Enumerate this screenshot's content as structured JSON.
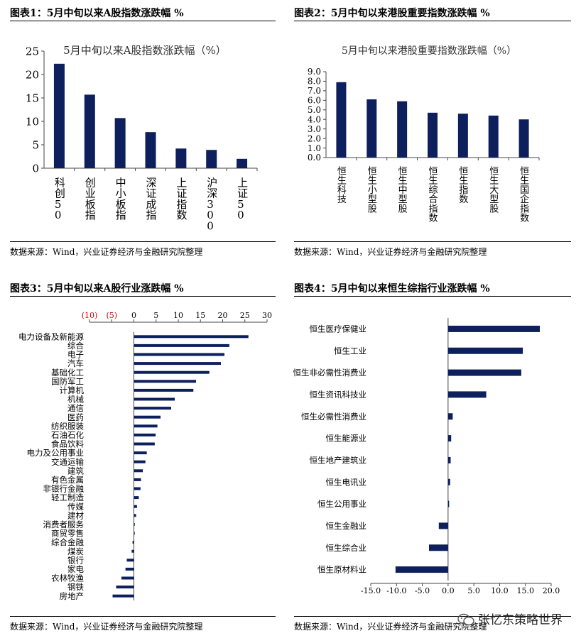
{
  "panels": [
    {
      "title": "图表1：5月中旬以来A股指数涨跌幅 %",
      "source": "数据来源：Wind，兴业证券经济与金融研究院整理",
      "chart_data": {
        "type": "bar",
        "orientation": "vertical",
        "title": "5月中旬以来A股指数涨跌幅（%）",
        "categories": [
          "科创50",
          "创业板指",
          "中小板指",
          "深证成指",
          "上证指数",
          "沪深300",
          "上证50"
        ],
        "values": [
          22.3,
          15.7,
          10.7,
          7.7,
          4.2,
          3.9,
          2.0
        ],
        "ylim": [
          0,
          25
        ],
        "yticks": [
          "0",
          "5",
          "10",
          "15",
          "20",
          "25"
        ],
        "color": "#0d1f5c"
      }
    },
    {
      "title": "图表2：5月中旬以来港股重要指数涨跌幅 %",
      "source": "数据来源：Wind，兴业证券经济与金融研究院整理",
      "chart_data": {
        "type": "bar",
        "orientation": "vertical",
        "title": "5月中旬以来港股重要指数涨跌幅（%）",
        "categories": [
          "恒生科技",
          "恒生小型股",
          "恒生中型股",
          "恒生综合指数",
          "恒生指数",
          "恒生大型股",
          "恒生国企指数"
        ],
        "values": [
          7.9,
          6.1,
          5.9,
          4.7,
          4.6,
          4.4,
          4.0
        ],
        "ylim": [
          0,
          9
        ],
        "yticks": [
          "0.0",
          "1.0",
          "2.0",
          "3.0",
          "4.0",
          "5.0",
          "6.0",
          "7.0",
          "8.0",
          "9.0"
        ],
        "color": "#0d1f5c"
      }
    },
    {
      "title": "图表3：5月中旬以来A股行业涨跌幅 %",
      "source": "数据来源：Wind，兴业证券经济与金融研究院整理",
      "chart_data": {
        "type": "bar",
        "orientation": "horizontal",
        "categories": [
          "电力设备及新能源",
          "综合",
          "电子",
          "汽车",
          "基础化工",
          "国防军工",
          "计算机",
          "机械",
          "通信",
          "医药",
          "纺织服装",
          "石油石化",
          "食品饮料",
          "电力及公用事业",
          "交通运输",
          "建筑",
          "有色金属",
          "非银行金融",
          "轻工制造",
          "传媒",
          "建材",
          "消费者服务",
          "商贸零售",
          "综合金融",
          "煤炭",
          "银行",
          "家电",
          "农林牧渔",
          "钢铁",
          "房地产"
        ],
        "values": [
          25.8,
          21.5,
          20.4,
          19.6,
          17.0,
          14.0,
          13.4,
          9.2,
          8.4,
          6.0,
          5.3,
          4.9,
          4.7,
          2.9,
          2.6,
          2.0,
          1.6,
          1.5,
          1.1,
          0.7,
          0.5,
          0.2,
          0.1,
          -0.3,
          -0.5,
          -1.6,
          -1.9,
          -2.8,
          -4.0,
          -4.8
        ],
        "xlim": [
          -10,
          30
        ],
        "xticks": [
          {
            "value": -10,
            "label": "(10)",
            "negative": true
          },
          {
            "value": -5,
            "label": "(5)",
            "negative": true
          },
          {
            "value": 0,
            "label": "0",
            "negative": false
          },
          {
            "value": 5,
            "label": "5",
            "negative": false
          },
          {
            "value": 10,
            "label": "10",
            "negative": false
          },
          {
            "value": 15,
            "label": "15",
            "negative": false
          },
          {
            "value": 20,
            "label": "20",
            "negative": false
          },
          {
            "value": 25,
            "label": "25",
            "negative": false
          },
          {
            "value": 30,
            "label": "30",
            "negative": false
          }
        ],
        "color": "#0d1f5c",
        "negative_tick_color": "#cc0000"
      }
    },
    {
      "title": "图表4：5月中旬以来恒生综指行业涨跌幅 %",
      "source": "数据来源：Wind，兴业证券经济与金融研究院整理",
      "chart_data": {
        "type": "bar",
        "orientation": "horizontal",
        "categories": [
          "恒生医疗保健业",
          "恒生工业",
          "恒生非必需性消费业",
          "恒生资讯科技业",
          "恒生必需性消费业",
          "恒生能源业",
          "恒生地产建筑业",
          "恒生电讯业",
          "恒生公用事业",
          "恒生金融业",
          "恒生综合业",
          "恒生原材料业"
        ],
        "values": [
          17.8,
          14.5,
          14.2,
          7.4,
          0.9,
          0.6,
          0.5,
          0.4,
          0.2,
          -1.8,
          -3.7,
          -10.2
        ],
        "xlim": [
          -15,
          20
        ],
        "xticks": [
          {
            "value": -15,
            "label": "-15.0",
            "negative": true
          },
          {
            "value": -10,
            "label": "-10.0",
            "negative": true
          },
          {
            "value": -5,
            "label": "-5.0",
            "negative": true
          },
          {
            "value": 0,
            "label": "0.0",
            "negative": false
          },
          {
            "value": 5,
            "label": "5.0",
            "negative": false
          },
          {
            "value": 10,
            "label": "10.0",
            "negative": false
          },
          {
            "value": 15,
            "label": "15.0",
            "negative": false
          },
          {
            "value": 20,
            "label": "20.0",
            "negative": false
          }
        ],
        "color": "#0d1f5c"
      }
    }
  ],
  "watermark": "张忆东策略世界"
}
